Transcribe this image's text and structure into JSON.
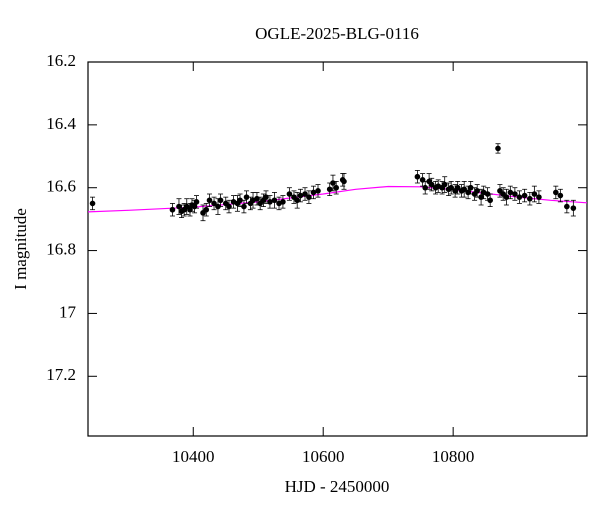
{
  "chart_data": {
    "type": "scatter",
    "title": "OGLE-2025-BLG-0116",
    "x_label": "HJD - 2450000",
    "y_label": "I magnitude",
    "x": [
      10245,
      10368,
      10378,
      10382,
      10386,
      10390,
      10395,
      10398,
      10402,
      10405,
      10415,
      10420,
      10425,
      10432,
      10438,
      10442,
      10450,
      10455,
      10462,
      10468,
      10472,
      10478,
      10482,
      10488,
      10492,
      10498,
      10503,
      10508,
      10512,
      10518,
      10525,
      10532,
      10538,
      10548,
      10555,
      10560,
      10565,
      10572,
      10578,
      10585,
      10592,
      10610,
      10615,
      10620,
      10630,
      10632,
      10745,
      10753,
      10757,
      10763,
      10767,
      10773,
      10777,
      10783,
      10787,
      10793,
      10797,
      10803,
      10807,
      10813,
      10817,
      10823,
      10827,
      10833,
      10837,
      10843,
      10847,
      10853,
      10857,
      10869,
      10872,
      10877,
      10882,
      10888,
      10895,
      10902,
      10910,
      10918,
      10925,
      10932,
      10958,
      10965,
      10975,
      10985
    ],
    "values": [
      16.65,
      16.67,
      16.66,
      16.675,
      16.67,
      16.66,
      16.67,
      16.655,
      16.66,
      16.645,
      16.68,
      16.67,
      16.64,
      16.65,
      16.66,
      16.64,
      16.65,
      16.66,
      16.645,
      16.65,
      16.64,
      16.66,
      16.63,
      16.65,
      16.64,
      16.635,
      16.65,
      16.64,
      16.63,
      16.645,
      16.64,
      16.65,
      16.645,
      16.62,
      16.63,
      16.64,
      16.625,
      16.62,
      16.63,
      16.615,
      16.61,
      16.605,
      16.585,
      16.6,
      16.575,
      16.58,
      16.565,
      16.575,
      16.6,
      16.58,
      16.59,
      16.6,
      16.595,
      16.6,
      16.59,
      16.605,
      16.6,
      16.61,
      16.6,
      16.61,
      16.605,
      16.615,
      16.6,
      16.62,
      16.61,
      16.63,
      16.615,
      16.62,
      16.64,
      16.475,
      16.61,
      16.62,
      16.63,
      16.615,
      16.62,
      16.63,
      16.625,
      16.635,
      16.62,
      16.63,
      16.615,
      16.625,
      16.66,
      16.665
    ],
    "errors": [
      0.02,
      0.02,
      0.025,
      0.02,
      0.02,
      0.025,
      0.02,
      0.02,
      0.02,
      0.02,
      0.025,
      0.02,
      0.02,
      0.02,
      0.025,
      0.02,
      0.02,
      0.02,
      0.02,
      0.025,
      0.02,
      0.02,
      0.02,
      0.02,
      0.025,
      0.02,
      0.02,
      0.02,
      0.02,
      0.02,
      0.025,
      0.02,
      0.02,
      0.02,
      0.02,
      0.025,
      0.02,
      0.02,
      0.02,
      0.02,
      0.02,
      0.02,
      0.025,
      0.02,
      0.02,
      0.025,
      0.02,
      0.02,
      0.02,
      0.025,
      0.02,
      0.02,
      0.02,
      0.02,
      0.025,
      0.02,
      0.02,
      0.02,
      0.02,
      0.02,
      0.025,
      0.02,
      0.02,
      0.02,
      0.02,
      0.025,
      0.02,
      0.02,
      0.02,
      0.015,
      0.02,
      0.02,
      0.025,
      0.02,
      0.02,
      0.02,
      0.02,
      0.02,
      0.025,
      0.02,
      0.02,
      0.02,
      0.02,
      0.025
    ],
    "color": "#000000",
    "fit_x": [
      10238,
      10300,
      10400,
      10500,
      10600,
      10650,
      10700,
      10750,
      10800,
      10850,
      10900,
      10950,
      11006
    ],
    "fit_values": [
      16.677,
      16.672,
      16.662,
      16.645,
      16.62,
      16.605,
      16.596,
      16.597,
      16.606,
      16.618,
      16.63,
      16.64,
      16.648
    ],
    "fit_color": "#ff00ff",
    "xlim": [
      10238,
      11006
    ],
    "ylim": [
      16.2,
      17.39
    ],
    "invert_y": true,
    "xticks": [
      10400,
      10600,
      10800
    ],
    "yticks": [
      16.2,
      16.4,
      16.6,
      16.8,
      17,
      17.2
    ]
  }
}
